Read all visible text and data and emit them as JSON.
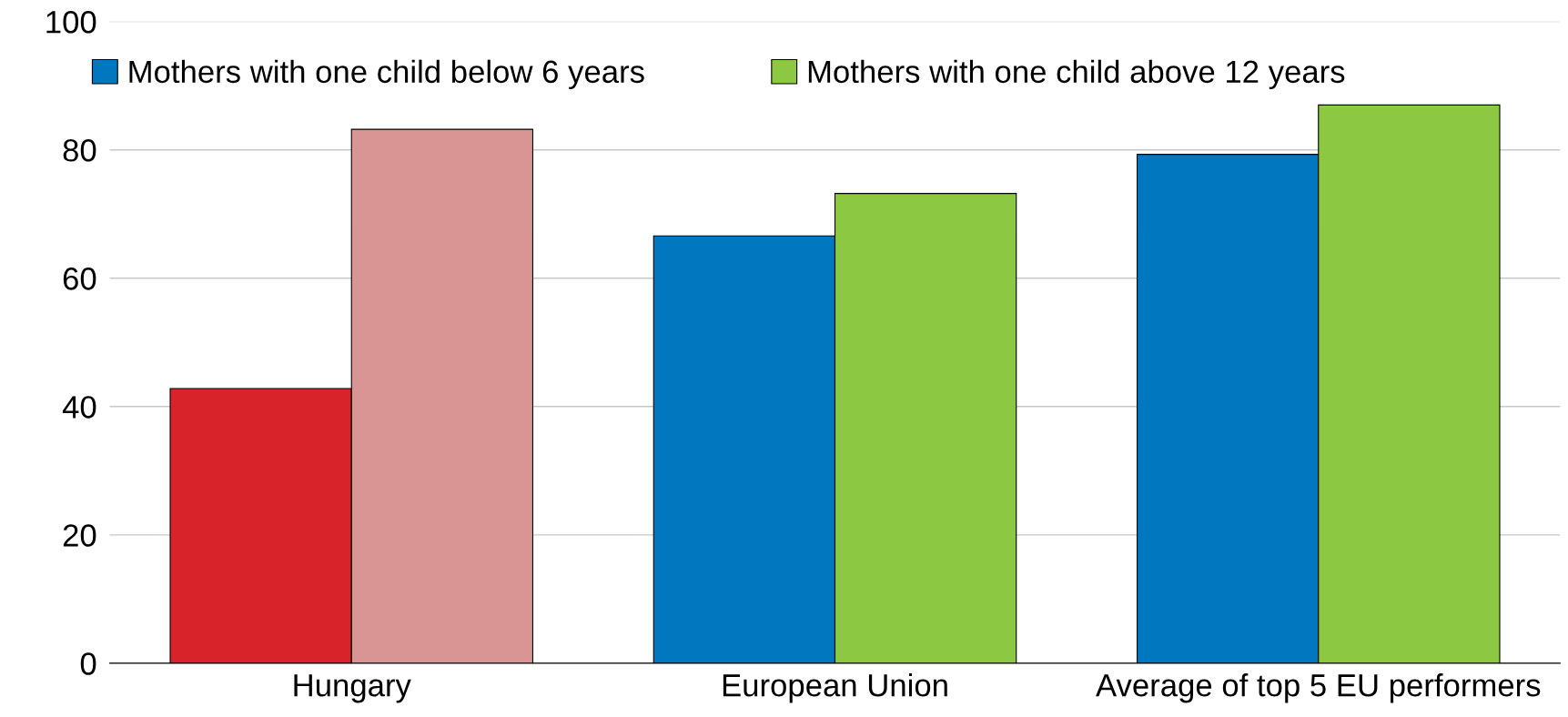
{
  "chart_data": {
    "type": "bar",
    "categories": [
      "Hungary",
      "European Union",
      "Average of top 5 EU performers"
    ],
    "series": [
      {
        "name": "Mothers with one child below 6 years",
        "color": "#0077bf",
        "colors": [
          "#d9232a",
          "#0077bf",
          "#0077bf"
        ],
        "values": [
          42.8,
          66.6,
          79.3
        ]
      },
      {
        "name": "Mothers with one child above 12 years",
        "color": "#8cc841",
        "colors": [
          "#d99594",
          "#8cc841",
          "#8cc841"
        ],
        "values": [
          83.2,
          73.2,
          87.0
        ]
      }
    ],
    "ylim": [
      0,
      100
    ],
    "yticks": [
      0,
      20,
      40,
      60,
      80,
      100
    ],
    "grid": "y",
    "legend": "top"
  }
}
